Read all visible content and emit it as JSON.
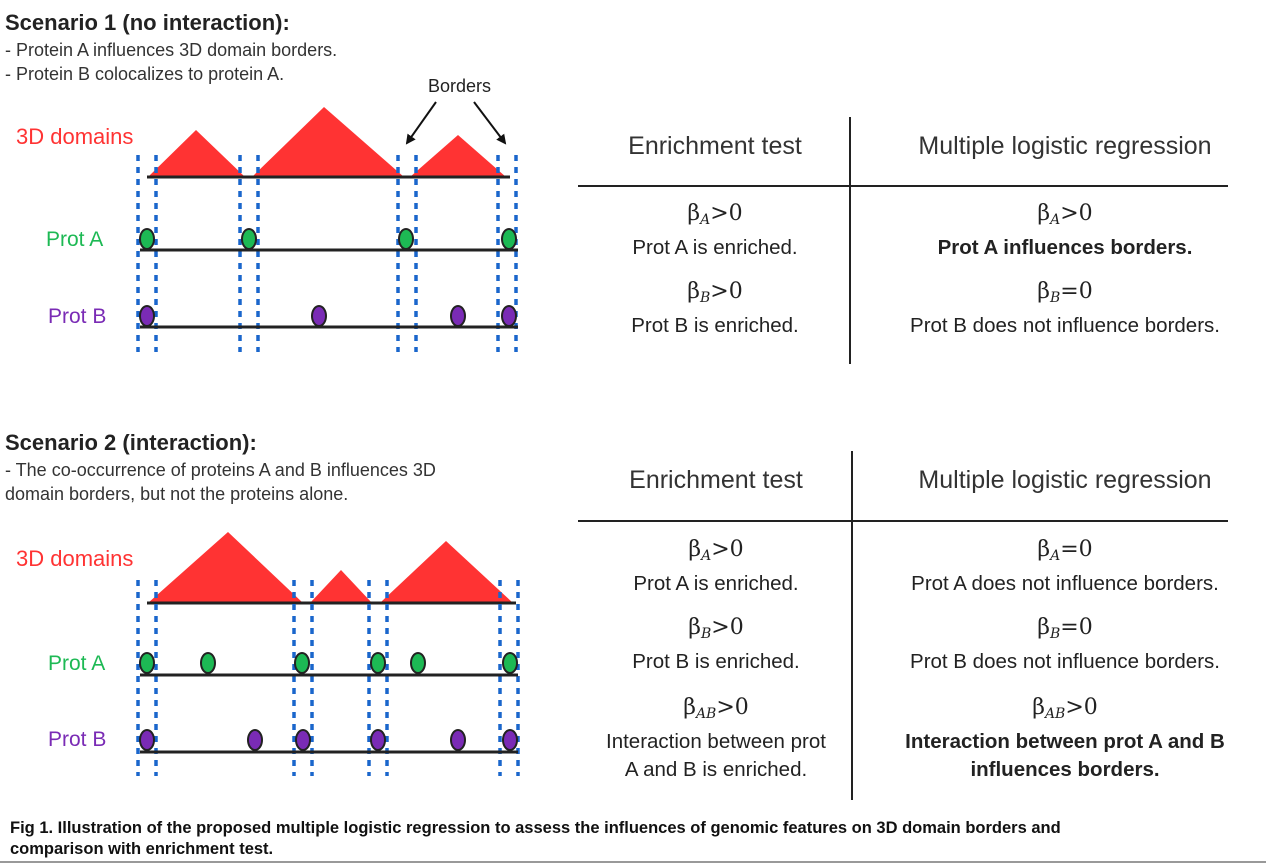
{
  "scenario1": {
    "title": "Scenario 1 (no interaction):",
    "lines": [
      "- Protein A influences 3D domain borders.",
      "- Protein B colocalizes to protein A."
    ],
    "borders_label": "Borders",
    "domains_label": "3D domains",
    "prot_a_label": "Prot A",
    "prot_b_label": "Prot B",
    "table": {
      "header_left": "Enrichment test",
      "header_right": "Multiple logistic regression",
      "rows": [
        {
          "left_beta": "β",
          "left_sub": "A",
          "left_op": ">0",
          "left_text": "Prot A is enriched.",
          "right_beta": "β",
          "right_sub": "A",
          "right_op": ">0",
          "right_text": "Prot A influences borders."
        },
        {
          "left_beta": "β",
          "left_sub": "B",
          "left_op": ">0",
          "left_text": "Prot B is enriched.",
          "right_beta": "β",
          "right_sub": "B",
          "right_op": "=0",
          "right_text": "Prot B does not influence borders."
        }
      ]
    }
  },
  "scenario2": {
    "title": "Scenario 2 (interaction):",
    "lines": [
      "- The co-occurrence of proteins A and B influences 3D",
      "domain borders, but not the proteins alone."
    ],
    "domains_label": "3D domains",
    "prot_a_label": "Prot A",
    "prot_b_label": "Prot B",
    "table": {
      "header_left": "Enrichment test",
      "header_right": "Multiple logistic regression",
      "rows": [
        {
          "left_beta": "β",
          "left_sub": "A",
          "left_op": ">0",
          "left_text": "Prot A is enriched.",
          "right_beta": "β",
          "right_sub": "A",
          "right_op": "=0",
          "right_text": "Prot A does not influence borders."
        },
        {
          "left_beta": "β",
          "left_sub": "B",
          "left_op": ">0",
          "left_text": "Prot B is enriched.",
          "right_beta": "β",
          "right_sub": "B",
          "right_op": "=0",
          "right_text": "Prot B does not influence borders."
        },
        {
          "left_beta": "β",
          "left_sub": "AB",
          "left_op": ">0",
          "left_text_1": "Interaction between prot",
          "left_text_2": "A and B is enriched.",
          "right_beta": "β",
          "right_sub": "AB",
          "right_op": ">0",
          "right_text_1": "Interaction between prot A and B",
          "right_text_2": "influences borders."
        }
      ]
    }
  },
  "caption": {
    "line1": "Fig 1. Illustration of the proposed multiple logistic regression to assess the influences of genomic features on 3D domain borders and",
    "line2": "comparison with enrichment test."
  },
  "colors": {
    "domain": "#ff3333",
    "prot_a": "#1db954",
    "prot_b": "#7a2bb5",
    "border_dots": "#1a66cc"
  }
}
